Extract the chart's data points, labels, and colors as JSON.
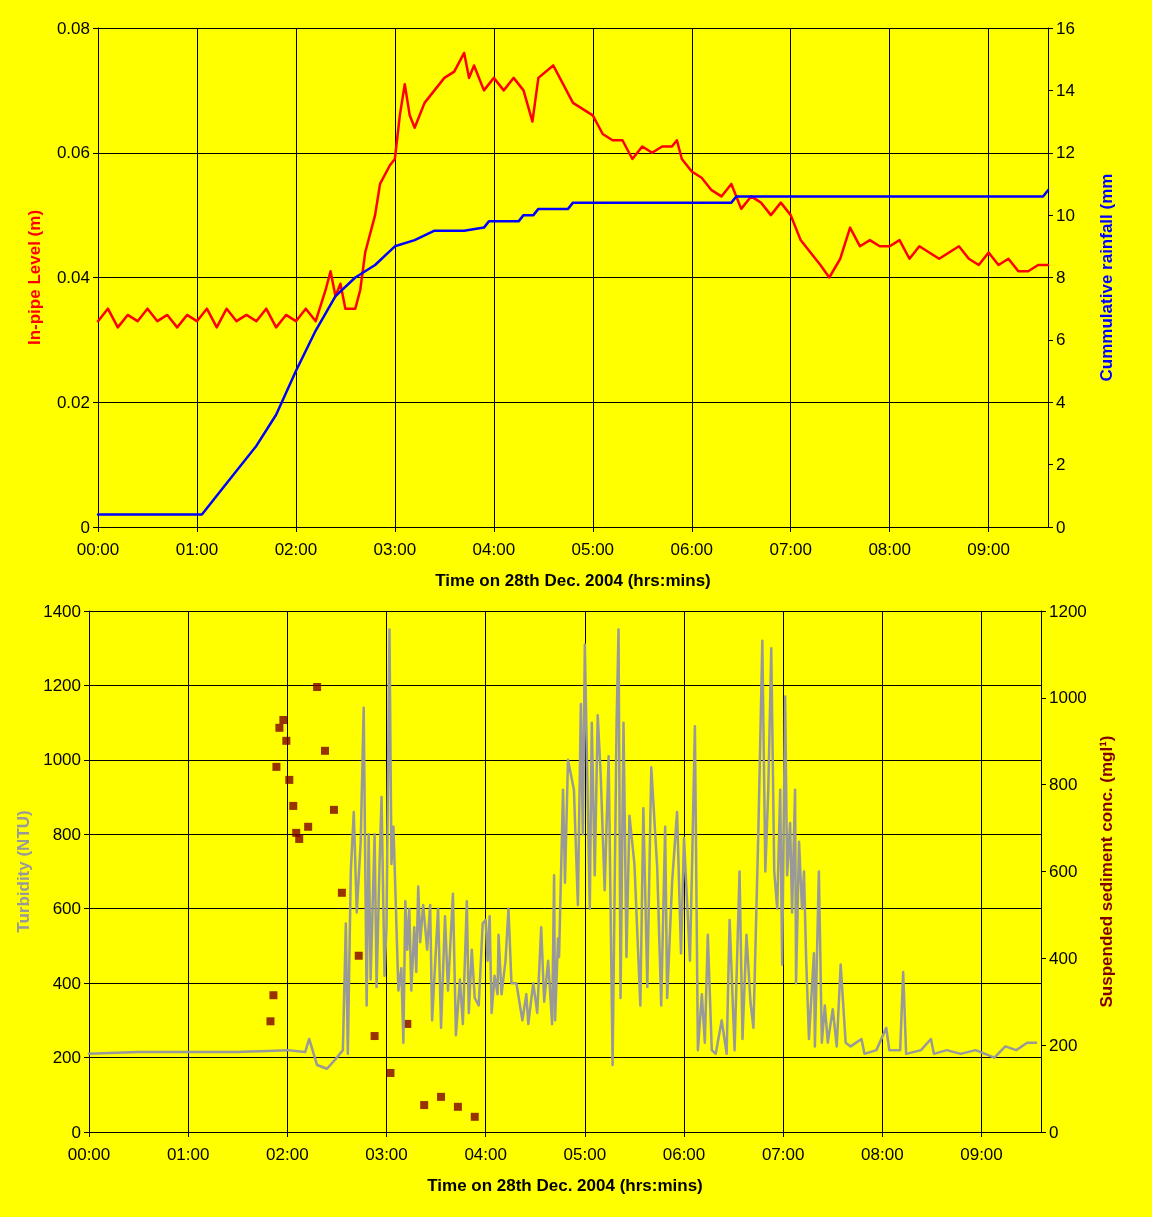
{
  "chart_data": [
    {
      "type": "line",
      "xlabel": "Time on 28th Dec. 2004 (hrs:mins)",
      "ylabel": "In-pipe Level (m)",
      "y2label": "Cummulative rainfall (mm",
      "grid": true,
      "xlim": [
        0,
        9.6
      ],
      "xticks": [
        {
          "value": 0,
          "label": "00:00"
        },
        {
          "value": 1,
          "label": "01:00"
        },
        {
          "value": 2,
          "label": "02:00"
        },
        {
          "value": 3,
          "label": "03:00"
        },
        {
          "value": 4,
          "label": "04:00"
        },
        {
          "value": 5,
          "label": "05:00"
        },
        {
          "value": 6,
          "label": "06:00"
        },
        {
          "value": 7,
          "label": "07:00"
        },
        {
          "value": 8,
          "label": "08:00"
        },
        {
          "value": 9,
          "label": "09:00"
        }
      ],
      "ylim": [
        0,
        0.08
      ],
      "yticks": [
        0,
        0.02,
        0.04,
        0.06,
        0.08
      ],
      "y2lim": [
        0,
        16
      ],
      "y2ticks": [
        0,
        2,
        4,
        6,
        8,
        10,
        12,
        14,
        16
      ],
      "series": [
        {
          "color": "#ff0000",
          "marker": "none",
          "x": [
            0,
            0.1,
            0.2,
            0.3,
            0.4,
            0.5,
            0.6,
            0.7,
            0.8,
            0.9,
            1.0,
            1.1,
            1.2,
            1.3,
            1.4,
            1.5,
            1.6,
            1.7,
            1.8,
            1.9,
            2.0,
            2.1,
            2.2,
            2.3,
            2.35,
            2.4,
            2.45,
            2.5,
            2.6,
            2.65,
            2.7,
            2.8,
            2.85,
            2.95,
            3.0,
            3.05,
            3.1,
            3.15,
            3.2,
            3.3,
            3.4,
            3.5,
            3.6,
            3.7,
            3.75,
            3.8,
            3.9,
            4.0,
            4.1,
            4.2,
            4.3,
            4.39,
            4.45,
            4.6,
            4.7,
            4.8,
            4.9,
            5.0,
            5.1,
            5.2,
            5.3,
            5.4,
            5.5,
            5.6,
            5.7,
            5.8,
            5.85,
            5.9,
            6.0,
            6.1,
            6.2,
            6.3,
            6.4,
            6.5,
            6.6,
            6.7,
            6.8,
            6.9,
            7.0,
            7.1,
            7.2,
            7.3,
            7.39,
            7.5,
            7.6,
            7.7,
            7.8,
            7.9,
            8.0,
            8.1,
            8.2,
            8.3,
            8.4,
            8.5,
            8.6,
            8.7,
            8.8,
            8.9,
            9.0,
            9.1,
            9.2,
            9.3,
            9.4,
            9.5,
            9.6
          ],
          "values": [
            0.033,
            0.035,
            0.032,
            0.034,
            0.033,
            0.035,
            0.033,
            0.034,
            0.032,
            0.034,
            0.033,
            0.035,
            0.032,
            0.035,
            0.033,
            0.034,
            0.033,
            0.035,
            0.032,
            0.034,
            0.033,
            0.035,
            0.033,
            0.038,
            0.041,
            0.037,
            0.039,
            0.035,
            0.035,
            0.038,
            0.044,
            0.05,
            0.055,
            0.058,
            0.059,
            0.066,
            0.071,
            0.066,
            0.064,
            0.068,
            0.07,
            0.072,
            0.073,
            0.076,
            0.072,
            0.074,
            0.07,
            0.072,
            0.07,
            0.072,
            0.07,
            0.065,
            0.072,
            0.074,
            0.071,
            0.068,
            0.067,
            0.066,
            0.063,
            0.062,
            0.062,
            0.059,
            0.061,
            0.06,
            0.061,
            0.061,
            0.062,
            0.059,
            0.057,
            0.056,
            0.054,
            0.053,
            0.055,
            0.051,
            0.053,
            0.052,
            0.05,
            0.052,
            0.05,
            0.046,
            0.044,
            0.042,
            0.04,
            0.043,
            0.048,
            0.045,
            0.046,
            0.045,
            0.045,
            0.046,
            0.043,
            0.045,
            0.044,
            0.043,
            0.044,
            0.045,
            0.043,
            0.042,
            0.044,
            0.042,
            0.043,
            0.041,
            0.041,
            0.042,
            0.042
          ]
        },
        {
          "color": "#0000ff",
          "marker": "none",
          "axis": "y2",
          "x": [
            0,
            1.05,
            1.1,
            1.3,
            1.6,
            1.8,
            2.0,
            2.2,
            2.4,
            2.6,
            2.8,
            3.0,
            3.2,
            3.4,
            3.7,
            3.9,
            3.95,
            4.25,
            4.3,
            4.4,
            4.45,
            4.75,
            4.8,
            6.4,
            6.45,
            9.55,
            9.6
          ],
          "values": [
            0.4,
            0.4,
            0.6,
            1.4,
            2.6,
            3.6,
            5.0,
            6.3,
            7.4,
            8.0,
            8.4,
            9.0,
            9.2,
            9.5,
            9.5,
            9.6,
            9.8,
            9.8,
            10.0,
            10.0,
            10.2,
            10.2,
            10.4,
            10.4,
            10.6,
            10.6,
            10.8
          ]
        }
      ]
    },
    {
      "type": "line",
      "xlabel": "Time on 28th Dec. 2004 (hrs:mins)",
      "ylabel": "Turbidity (NTU)",
      "y2label": "Suspended sediment conc. (mgl¹)",
      "grid": true,
      "xlim": [
        0,
        9.6
      ],
      "xticks": [
        {
          "value": 0,
          "label": "00:00"
        },
        {
          "value": 1,
          "label": "01:00"
        },
        {
          "value": 2,
          "label": "02:00"
        },
        {
          "value": 3,
          "label": "03:00"
        },
        {
          "value": 4,
          "label": "04:00"
        },
        {
          "value": 5,
          "label": "05:00"
        },
        {
          "value": 6,
          "label": "06:00"
        },
        {
          "value": 7,
          "label": "07:00"
        },
        {
          "value": 8,
          "label": "08:00"
        },
        {
          "value": 9,
          "label": "09:00"
        }
      ],
      "ylim": [
        0,
        1400
      ],
      "yticks": [
        0,
        200,
        400,
        600,
        800,
        1000,
        1200,
        1400
      ],
      "y2lim": [
        0,
        1200
      ],
      "y2ticks": [
        0,
        200,
        400,
        600,
        800,
        1000,
        1200
      ],
      "series": [
        {
          "color": "#999999",
          "marker": "none",
          "x": [
            0,
            0.5,
            1,
            1.5,
            2.0,
            2.18,
            2.22,
            2.3,
            2.4,
            2.5,
            2.56,
            2.59,
            2.61,
            2.64,
            2.67,
            2.7,
            2.74,
            2.77,
            2.8,
            2.82,
            2.84,
            2.88,
            2.9,
            2.93,
            2.95,
            2.98,
            3.0,
            3.03,
            3.05,
            3.07,
            3.12,
            3.15,
            3.17,
            3.19,
            3.21,
            3.23,
            3.25,
            3.28,
            3.3,
            3.32,
            3.34,
            3.37,
            3.41,
            3.44,
            3.46,
            3.52,
            3.55,
            3.59,
            3.62,
            3.67,
            3.7,
            3.74,
            3.77,
            3.81,
            3.83,
            3.86,
            3.89,
            3.93,
            3.97,
            4.0,
            4.02,
            4.04,
            4.06,
            4.09,
            4.12,
            4.13,
            4.16,
            4.2,
            4.23,
            4.26,
            4.31,
            4.37,
            4.41,
            4.43,
            4.48,
            4.52,
            4.56,
            4.59,
            4.63,
            4.67,
            4.69,
            4.7,
            4.73,
            4.74,
            4.78,
            4.8,
            4.83,
            4.89,
            4.93,
            4.96,
            4.98,
            5.0,
            5.03,
            5.05,
            5.07,
            5.1,
            5.13,
            5.16,
            5.2,
            5.24,
            5.28,
            5.32,
            5.34,
            5.36,
            5.39,
            5.42,
            5.45,
            5.5,
            5.56,
            5.59,
            5.63,
            5.67,
            5.73,
            5.77,
            5.81,
            5.83,
            5.88,
            5.93,
            5.97,
            6.0,
            6.06,
            6.08,
            6.11,
            6.14,
            6.18,
            6.21,
            6.24,
            6.28,
            6.32,
            6.38,
            6.43,
            6.46,
            6.51,
            6.56,
            6.59,
            6.63,
            6.67,
            6.7,
            6.75,
            6.79,
            6.82,
            6.85,
            6.88,
            6.91,
            6.94,
            6.97,
            6.99,
            7.02,
            7.04,
            7.07,
            7.09,
            7.12,
            7.13,
            7.16,
            7.19,
            7.21,
            7.23,
            7.26,
            7.31,
            7.32,
            7.36,
            7.39,
            7.42,
            7.45,
            7.5,
            7.54,
            7.58,
            7.63,
            7.68,
            7.79,
            7.82,
            7.94,
            8.04,
            8.07,
            8.18,
            8.21,
            8.24,
            8.39,
            8.49,
            8.52,
            8.65,
            8.79,
            8.94,
            9.13,
            9.24,
            9.35,
            9.46,
            9.55
          ],
          "values": [
            210,
            215,
            215,
            215,
            220,
            215,
            250,
            180,
            170,
            200,
            220,
            560,
            210,
            700,
            860,
            590,
            780,
            1140,
            340,
            800,
            410,
            800,
            390,
            720,
            900,
            420,
            550,
            1350,
            720,
            820,
            380,
            440,
            240,
            620,
            490,
            600,
            380,
            550,
            430,
            660,
            510,
            610,
            490,
            610,
            300,
            600,
            280,
            580,
            380,
            640,
            260,
            410,
            290,
            620,
            320,
            490,
            360,
            340,
            560,
            570,
            460,
            580,
            320,
            420,
            370,
            530,
            370,
            460,
            600,
            400,
            400,
            300,
            370,
            290,
            400,
            320,
            550,
            350,
            460,
            290,
            690,
            300,
            520,
            470,
            920,
            670,
            1000,
            920,
            610,
            1150,
            800,
            1310,
            880,
            600,
            1100,
            690,
            1120,
            960,
            650,
            1010,
            180,
            1100,
            1350,
            360,
            1100,
            470,
            850,
            720,
            340,
            870,
            390,
            980,
            710,
            340,
            820,
            360,
            670,
            860,
            480,
            790,
            460,
            700,
            1090,
            220,
            370,
            240,
            530,
            220,
            210,
            300,
            210,
            570,
            220,
            700,
            250,
            530,
            350,
            280,
            810,
            1320,
            700,
            920,
            1300,
            700,
            600,
            920,
            450,
            1170,
            690,
            830,
            590,
            920,
            400,
            780,
            600,
            700,
            480,
            250,
            480,
            230,
            700,
            240,
            340,
            240,
            330,
            230,
            450,
            240,
            230,
            250,
            210,
            220,
            280,
            220,
            220,
            430,
            210,
            220,
            250,
            210,
            220,
            210,
            220,
            200,
            230,
            220,
            240,
            240
          ]
        },
        {
          "type": "scatter",
          "color": "#800000",
          "marker": "square",
          "axis": "y2",
          "x": [
            1.83,
            1.86,
            1.89,
            1.92,
            1.96,
            1.99,
            2.02,
            2.06,
            2.09,
            2.12,
            2.21,
            2.3,
            2.38,
            2.47,
            2.55,
            2.72,
            2.88,
            3.04,
            3.21,
            3.38,
            3.55,
            3.72,
            3.89
          ],
          "values": [
            255,
            315,
            841,
            931,
            949,
            901,
            811,
            751,
            689,
            675,
            703,
            1025,
            878,
            742,
            551,
            406,
            221,
            136,
            249,
            62,
            81,
            58,
            35
          ]
        }
      ]
    }
  ]
}
